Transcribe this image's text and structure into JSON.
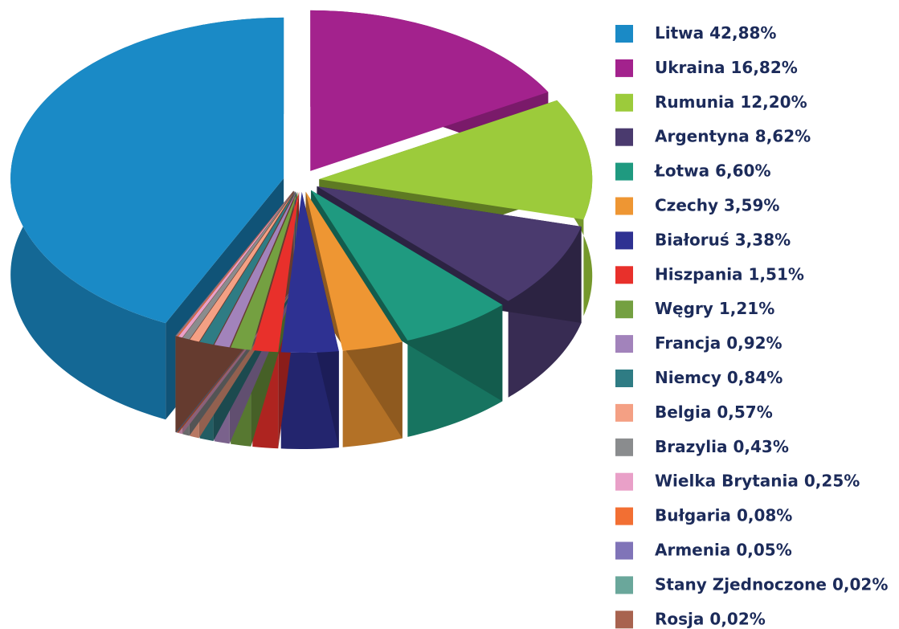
{
  "chart_data": {
    "type": "pie",
    "categories": [
      "Litwa",
      "Ukraina",
      "Rumunia",
      "Argentyna",
      "Łotwa",
      "Czechy",
      "Białoruś",
      "Hiszpania",
      "Węgry",
      "Francja",
      "Niemcy",
      "Belgia",
      "Brazylia",
      "Wielka Brytania",
      "Bułgaria",
      "Armenia",
      "Stany Zjednoczone",
      "Rosja"
    ],
    "values": [
      42.88,
      16.82,
      12.2,
      8.62,
      6.6,
      3.59,
      3.38,
      1.51,
      1.21,
      0.92,
      0.84,
      0.57,
      0.43,
      0.25,
      0.08,
      0.05,
      0.02,
      0.02
    ],
    "value_labels": [
      "42,88%",
      "16,82%",
      "12,20%",
      "8,62%",
      "6,60%",
      "3,59%",
      "3,38%",
      "1,51%",
      "1,21%",
      "0,92%",
      "0,84%",
      "0,57%",
      "0,43%",
      "0,25%",
      "0,08%",
      "0,05%",
      "0,02%",
      "0,02%"
    ],
    "colors": [
      "#1a8ac6",
      "#a3228d",
      "#9ccb3b",
      "#4a3a6e",
      "#1f9a80",
      "#ee9633",
      "#2e3192",
      "#e8302b",
      "#74a041",
      "#a283bb",
      "#2f7c84",
      "#f4a084",
      "#8a8c8e",
      "#e9a0c8",
      "#f26f33",
      "#8074b8",
      "#6aa79b",
      "#a8634f"
    ]
  }
}
